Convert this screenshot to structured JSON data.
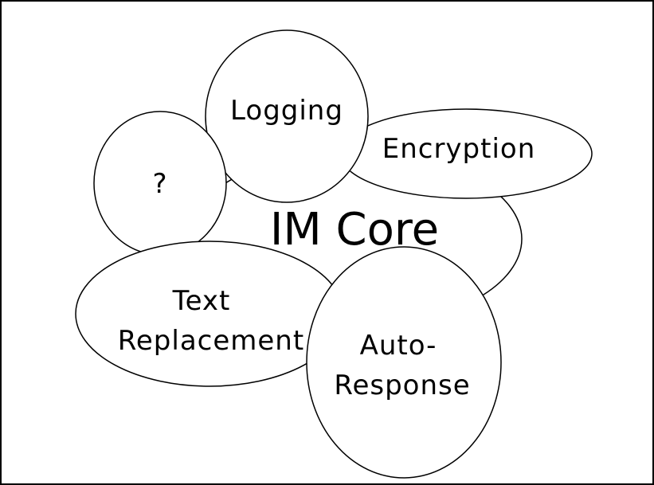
{
  "diagram": {
    "core": {
      "label": "IM Core"
    },
    "plugins": {
      "logging": {
        "label": "Logging"
      },
      "encryption": {
        "label": "Encryption"
      },
      "unknown": {
        "label": "?"
      },
      "text_replacement": {
        "line1": "Text",
        "line2": "Replacement"
      },
      "auto_response": {
        "line1": "Auto-",
        "line2": "Response"
      }
    }
  }
}
